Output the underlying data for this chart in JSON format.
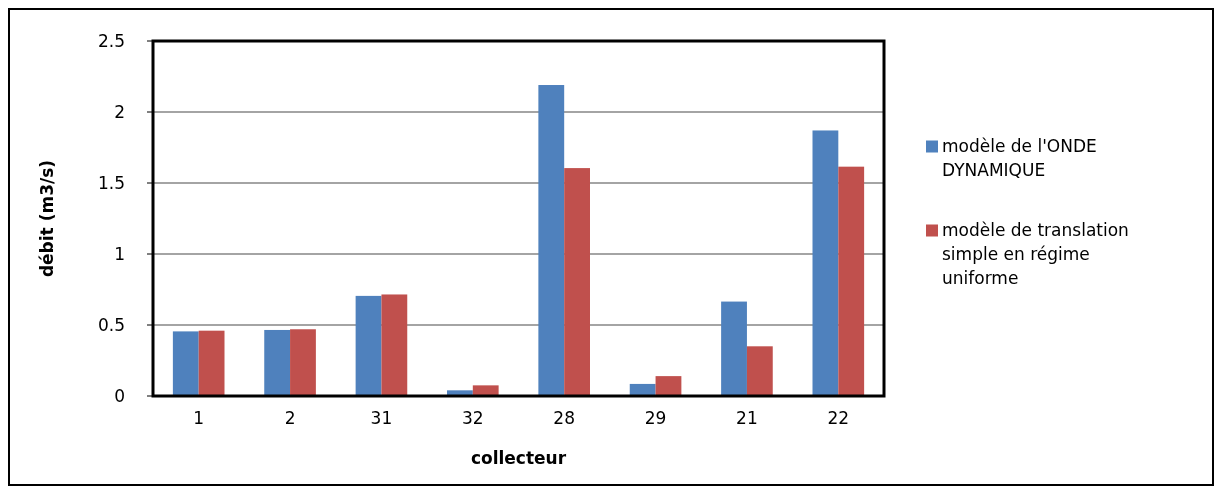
{
  "chart_data": {
    "type": "bar",
    "xlabel": "collecteur",
    "ylabel": "débit (m3/s)",
    "categories": [
      "1",
      "2",
      "31",
      "32",
      "28",
      "29",
      "21",
      "22"
    ],
    "series": [
      {
        "name": "modèle de l'ONDE DYNAMIQUE",
        "color": "#4f81bd",
        "values": [
          0.455,
          0.465,
          0.705,
          0.04,
          2.19,
          0.085,
          0.665,
          1.87
        ]
      },
      {
        "name": "modèle de translation simple en régime uniforme",
        "color": "#c0504d",
        "values": [
          0.46,
          0.47,
          0.715,
          0.075,
          1.605,
          0.14,
          0.35,
          1.615
        ]
      }
    ],
    "ylim": [
      0,
      2.5
    ],
    "yticks": [
      0,
      0.5,
      1,
      1.5,
      2,
      2.5
    ],
    "grid": "y",
    "legend": "right"
  }
}
